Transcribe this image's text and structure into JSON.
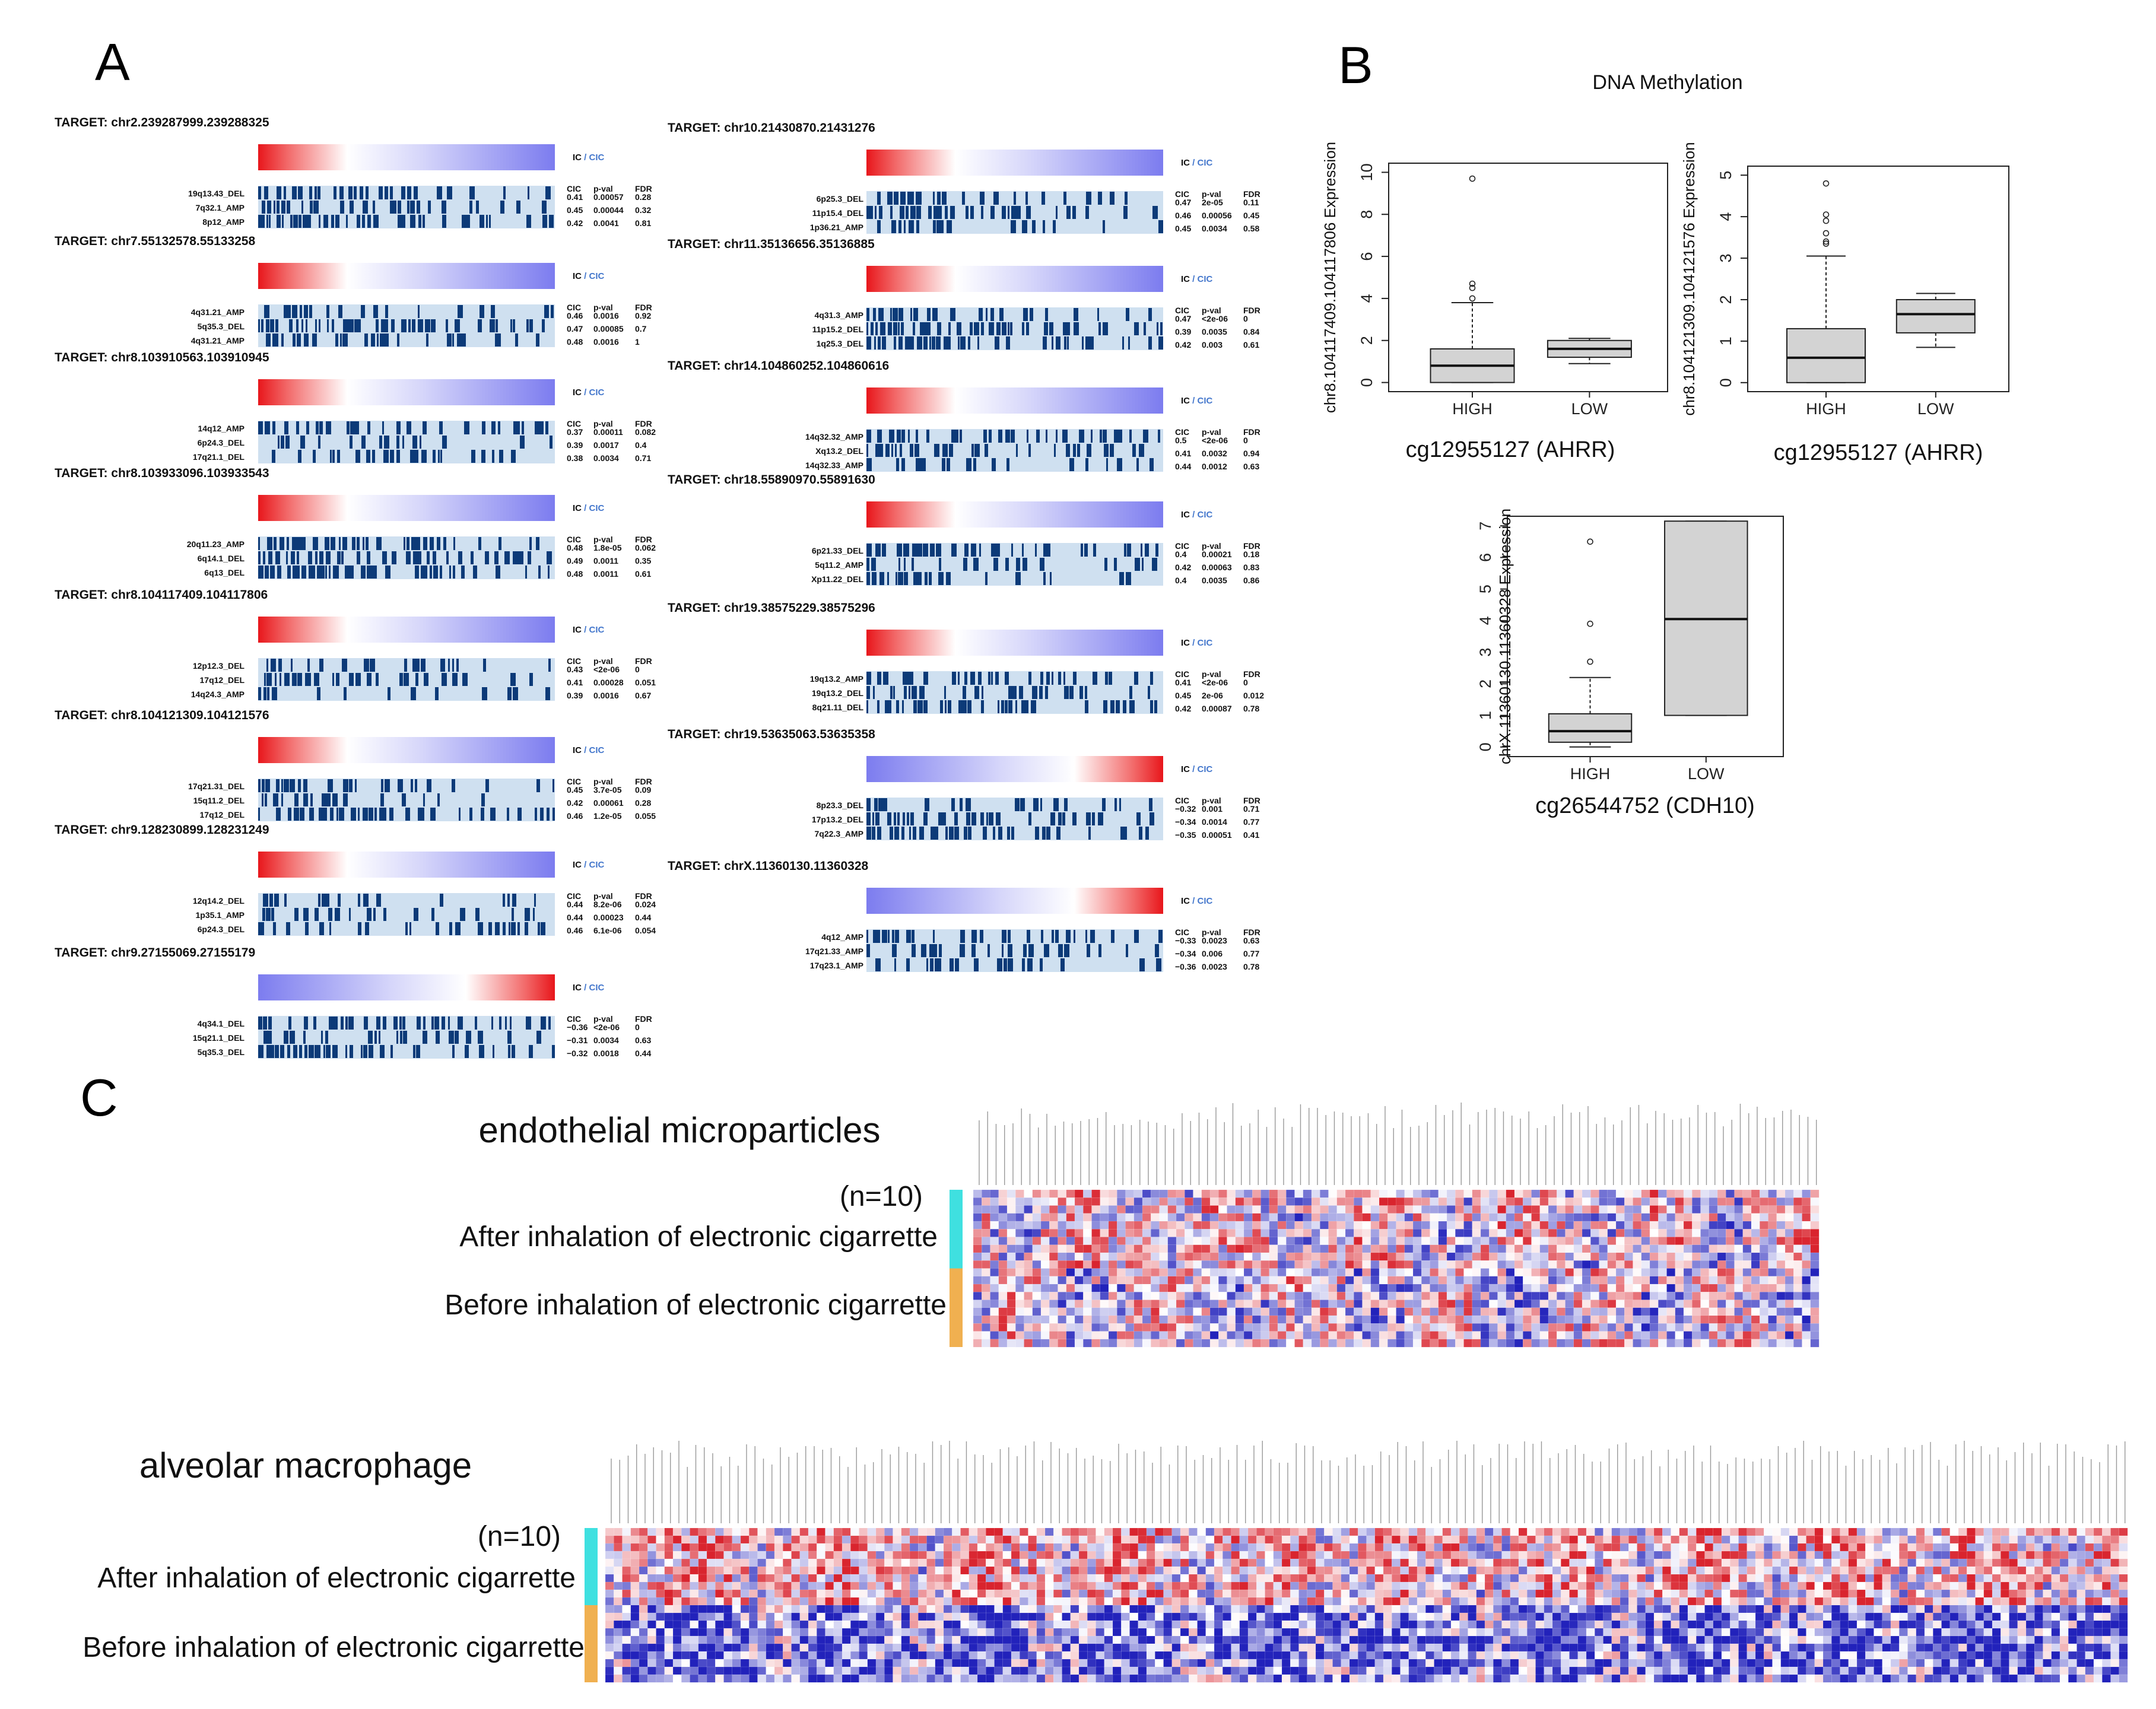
{
  "panels": {
    "a": "A",
    "b": "B",
    "c": "C"
  },
  "colors": {
    "red": "#e8262a",
    "blue": "#7f7ff0",
    "navy": "#0c3a78",
    "light": "#cfe0f0",
    "teal": "#3fe0e0",
    "orange": "#f0b050",
    "hm_red": "#d9242e",
    "hm_blue": "#2222bb"
  },
  "panel_a": {
    "ic_label": "IC",
    "sep": " / ",
    "cic_label": "CIC",
    "stat_headers": {
      "cic": "CIC",
      "pval": "p-val",
      "fdr": "FDR"
    },
    "targets": [
      {
        "title": "TARGET:  chr2.239287999.239288325",
        "gradient": "red-blue",
        "rows": [
          {
            "label": "19q13.43_DEL",
            "cic": "0.41",
            "pval": "0.00057",
            "fdr": "0.28"
          },
          {
            "label": "7q32.1_AMP",
            "cic": "0.45",
            "pval": "0.00044",
            "fdr": "0.32"
          },
          {
            "label": "8p12_AMP",
            "cic": "0.42",
            "pval": "0.0041",
            "fdr": "0.81"
          }
        ]
      },
      {
        "title": "TARGET:  chr7.55132578.55133258",
        "gradient": "red-blue",
        "rows": [
          {
            "label": "4q31.21_AMP",
            "cic": "0.46",
            "pval": "0.0016",
            "fdr": "0.92"
          },
          {
            "label": "5q35.3_DEL",
            "cic": "0.47",
            "pval": "0.00085",
            "fdr": "0.7"
          },
          {
            "label": "4q31.21_AMP",
            "cic": "0.48",
            "pval": "0.0016",
            "fdr": "1"
          }
        ]
      },
      {
        "title": "TARGET:  chr8.103910563.103910945",
        "gradient": "red-blue",
        "rows": [
          {
            "label": "14q12_AMP",
            "cic": "0.37",
            "pval": "0.00011",
            "fdr": "0.082"
          },
          {
            "label": "6p24.3_DEL",
            "cic": "0.39",
            "pval": "0.0017",
            "fdr": "0.4"
          },
          {
            "label": "17q21.1_DEL",
            "cic": "0.38",
            "pval": "0.0034",
            "fdr": "0.71"
          }
        ]
      },
      {
        "title": "TARGET:  chr8.103933096.103933543",
        "gradient": "red-blue",
        "rows": [
          {
            "label": "20q11.23_AMP",
            "cic": "0.48",
            "pval": "1.8e-05",
            "fdr": "0.062"
          },
          {
            "label": "6q14.1_DEL",
            "cic": "0.49",
            "pval": "0.0011",
            "fdr": "0.35"
          },
          {
            "label": "6q13_DEL",
            "cic": "0.48",
            "pval": "0.0011",
            "fdr": "0.61"
          }
        ]
      },
      {
        "title": "TARGET:  chr8.104117409.104117806",
        "gradient": "red-blue",
        "rows": [
          {
            "label": "12p12.3_DEL",
            "cic": "0.43",
            "pval": "<2e-06",
            "fdr": "0"
          },
          {
            "label": "17q12_DEL",
            "cic": "0.41",
            "pval": "0.00028",
            "fdr": "0.051"
          },
          {
            "label": "14q24.3_AMP",
            "cic": "0.39",
            "pval": "0.0016",
            "fdr": "0.67"
          }
        ]
      },
      {
        "title": "TARGET:  chr8.104121309.104121576",
        "gradient": "red-blue",
        "rows": [
          {
            "label": "17q21.31_DEL",
            "cic": "0.45",
            "pval": "3.7e-05",
            "fdr": "0.09"
          },
          {
            "label": "15q11.2_DEL",
            "cic": "0.42",
            "pval": "0.00061",
            "fdr": "0.28"
          },
          {
            "label": "17q12_DEL",
            "cic": "0.46",
            "pval": "1.2e-05",
            "fdr": "0.055"
          }
        ]
      },
      {
        "title": "TARGET:  chr9.128230899.128231249",
        "gradient": "red-blue",
        "rows": [
          {
            "label": "12q14.2_DEL",
            "cic": "0.44",
            "pval": "8.2e-06",
            "fdr": "0.024"
          },
          {
            "label": "1p35.1_AMP",
            "cic": "0.44",
            "pval": "0.00023",
            "fdr": "0.44"
          },
          {
            "label": "6p24.3_DEL",
            "cic": "0.46",
            "pval": "6.1e-06",
            "fdr": "0.054"
          }
        ]
      },
      {
        "title": "TARGET:  chr9.27155069.27155179",
        "gradient": "blue-red",
        "rows": [
          {
            "label": "4q34.1_DEL",
            "cic": "−0.36",
            "pval": "<2e-06",
            "fdr": "0"
          },
          {
            "label": "15q21.1_DEL",
            "cic": "−0.31",
            "pval": "0.0034",
            "fdr": "0.63"
          },
          {
            "label": "5q35.3_DEL",
            "cic": "−0.32",
            "pval": "0.0018",
            "fdr": "0.44"
          }
        ]
      },
      {
        "title": "TARGET:  chr10.21430870.21431276",
        "gradient": "red-blue",
        "rows": [
          {
            "label": "6p25.3_DEL",
            "cic": "0.47",
            "pval": "2e-05",
            "fdr": "0.11"
          },
          {
            "label": "11p15.4_DEL",
            "cic": "0.46",
            "pval": "0.00056",
            "fdr": "0.45"
          },
          {
            "label": "1p36.21_AMP",
            "cic": "0.45",
            "pval": "0.0034",
            "fdr": "0.58"
          }
        ]
      },
      {
        "title": "TARGET:  chr11.35136656.35136885",
        "gradient": "red-blue",
        "rows": [
          {
            "label": "4q31.3_AMP",
            "cic": "0.47",
            "pval": "<2e-06",
            "fdr": "0"
          },
          {
            "label": "11p15.2_DEL",
            "cic": "0.39",
            "pval": "0.0035",
            "fdr": "0.84"
          },
          {
            "label": "1q25.3_DEL",
            "cic": "0.42",
            "pval": "0.003",
            "fdr": "0.61"
          }
        ]
      },
      {
        "title": "TARGET:  chr14.104860252.104860616",
        "gradient": "red-blue",
        "rows": [
          {
            "label": "14q32.32_AMP",
            "cic": "0.5",
            "pval": "<2e-06",
            "fdr": "0"
          },
          {
            "label": "Xq13.2_DEL",
            "cic": "0.41",
            "pval": "0.0032",
            "fdr": "0.94"
          },
          {
            "label": "14q32.33_AMP",
            "cic": "0.44",
            "pval": "0.0012",
            "fdr": "0.63"
          }
        ]
      },
      {
        "title": "TARGET:  chr18.55890970.55891630",
        "gradient": "red-blue",
        "rows": [
          {
            "label": "6p21.33_DEL",
            "cic": "0.4",
            "pval": "0.00021",
            "fdr": "0.18"
          },
          {
            "label": "5q11.2_AMP",
            "cic": "0.42",
            "pval": "0.00063",
            "fdr": "0.83"
          },
          {
            "label": "Xp11.22_DEL",
            "cic": "0.4",
            "pval": "0.0035",
            "fdr": "0.86"
          }
        ]
      },
      {
        "title": "TARGET:  chr19.38575229.38575296",
        "gradient": "red-blue",
        "rows": [
          {
            "label": "19q13.2_AMP",
            "cic": "0.41",
            "pval": "<2e-06",
            "fdr": "0"
          },
          {
            "label": "19q13.2_DEL",
            "cic": "0.45",
            "pval": "2e-06",
            "fdr": "0.012"
          },
          {
            "label": "8q21.11_DEL",
            "cic": "0.42",
            "pval": "0.00087",
            "fdr": "0.78"
          }
        ]
      },
      {
        "title": "TARGET:  chr19.53635063.53635358",
        "gradient": "blue-red",
        "rows": [
          {
            "label": "8p23.3_DEL",
            "cic": "−0.32",
            "pval": "0.001",
            "fdr": "0.71"
          },
          {
            "label": "17p13.2_DEL",
            "cic": "−0.34",
            "pval": "0.0014",
            "fdr": "0.77"
          },
          {
            "label": "7q22.3_AMP",
            "cic": "−0.35",
            "pval": "0.00051",
            "fdr": "0.41"
          }
        ]
      },
      {
        "title": "TARGET:  chrX.11360130.11360328",
        "gradient": "blue-red",
        "rows": [
          {
            "label": "4q12_AMP",
            "cic": "−0.33",
            "pval": "0.0023",
            "fdr": "0.63"
          },
          {
            "label": "17q21.33_AMP",
            "cic": "−0.34",
            "pval": "0.006",
            "fdr": "0.77"
          },
          {
            "label": "17q23.1_AMP",
            "cic": "−0.36",
            "pval": "0.0023",
            "fdr": "0.78"
          }
        ]
      }
    ]
  },
  "chart_data": [
    {
      "type": "boxplot",
      "title": "DNA Methylation",
      "xlabel": "cg12955127 (AHRR)",
      "ylabel": "chr8.104117409.104117806 Expression",
      "categories": [
        "HIGH",
        "LOW"
      ],
      "ylim": [
        0,
        10
      ],
      "yticks": [
        "0",
        "2",
        "4",
        "6",
        "8",
        "10"
      ],
      "boxes": [
        {
          "min": 0,
          "q1": 0.0,
          "median": 0.8,
          "q3": 1.6,
          "max": 3.8,
          "outliers": [
            4.0,
            4.5,
            4.7,
            9.7
          ]
        },
        {
          "min": 0.9,
          "q1": 1.2,
          "median": 1.6,
          "q3": 2.0,
          "max": 2.1,
          "outliers": []
        }
      ]
    },
    {
      "type": "boxplot",
      "xlabel": "cg12955127 (AHRR)",
      "ylabel": "chr8.104121309.104121576 Expression",
      "categories": [
        "HIGH",
        "LOW"
      ],
      "ylim": [
        0,
        5
      ],
      "yticks": [
        "0",
        "1",
        "2",
        "3",
        "4",
        "5"
      ],
      "boxes": [
        {
          "min": 0,
          "q1": 0.0,
          "median": 0.6,
          "q3": 1.3,
          "max": 3.05,
          "outliers": [
            3.35,
            3.4,
            3.6,
            3.9,
            4.05,
            4.8
          ]
        },
        {
          "min": 0.85,
          "q1": 1.2,
          "median": 1.65,
          "q3": 2.0,
          "max": 2.15,
          "outliers": []
        }
      ]
    },
    {
      "type": "boxplot",
      "xlabel": "cg26544752 (CDH10)",
      "ylabel": "chrX.11360130.11360328 Expression",
      "categories": [
        "HIGH",
        "LOW"
      ],
      "ylim": [
        0,
        7
      ],
      "yticks": [
        "0",
        "1",
        "2",
        "3",
        "4",
        "5",
        "6",
        "7"
      ],
      "boxes": [
        {
          "min": 0,
          "q1": 0.15,
          "median": 0.5,
          "q3": 1.05,
          "max": 2.2,
          "outliers": [
            2.7,
            3.9,
            6.5
          ]
        },
        {
          "min": 1.0,
          "q1": 1.0,
          "median": 4.05,
          "q3": 7.15,
          "max": 7.15,
          "outliers": []
        }
      ]
    },
    {
      "type": "heatmap",
      "title": "endothelial microparticles",
      "n_label": "(n=10)",
      "groups": [
        "After inhalation of electronic cigarrette",
        "Before inhalation of electronic cigarrette"
      ],
      "n_rows": 20,
      "n_cols": 100,
      "color_scale": [
        "#2222bb",
        "#ffffff",
        "#d9242e"
      ]
    },
    {
      "type": "heatmap",
      "title": "alveolar macrophage",
      "n_label": "(n=10)",
      "groups": [
        "After inhalation of electronic cigarrette",
        "Before inhalation of electronic cigarrette"
      ],
      "n_rows": 20,
      "n_cols": 180,
      "color_scale": [
        "#2222bb",
        "#ffffff",
        "#d9242e"
      ]
    }
  ]
}
